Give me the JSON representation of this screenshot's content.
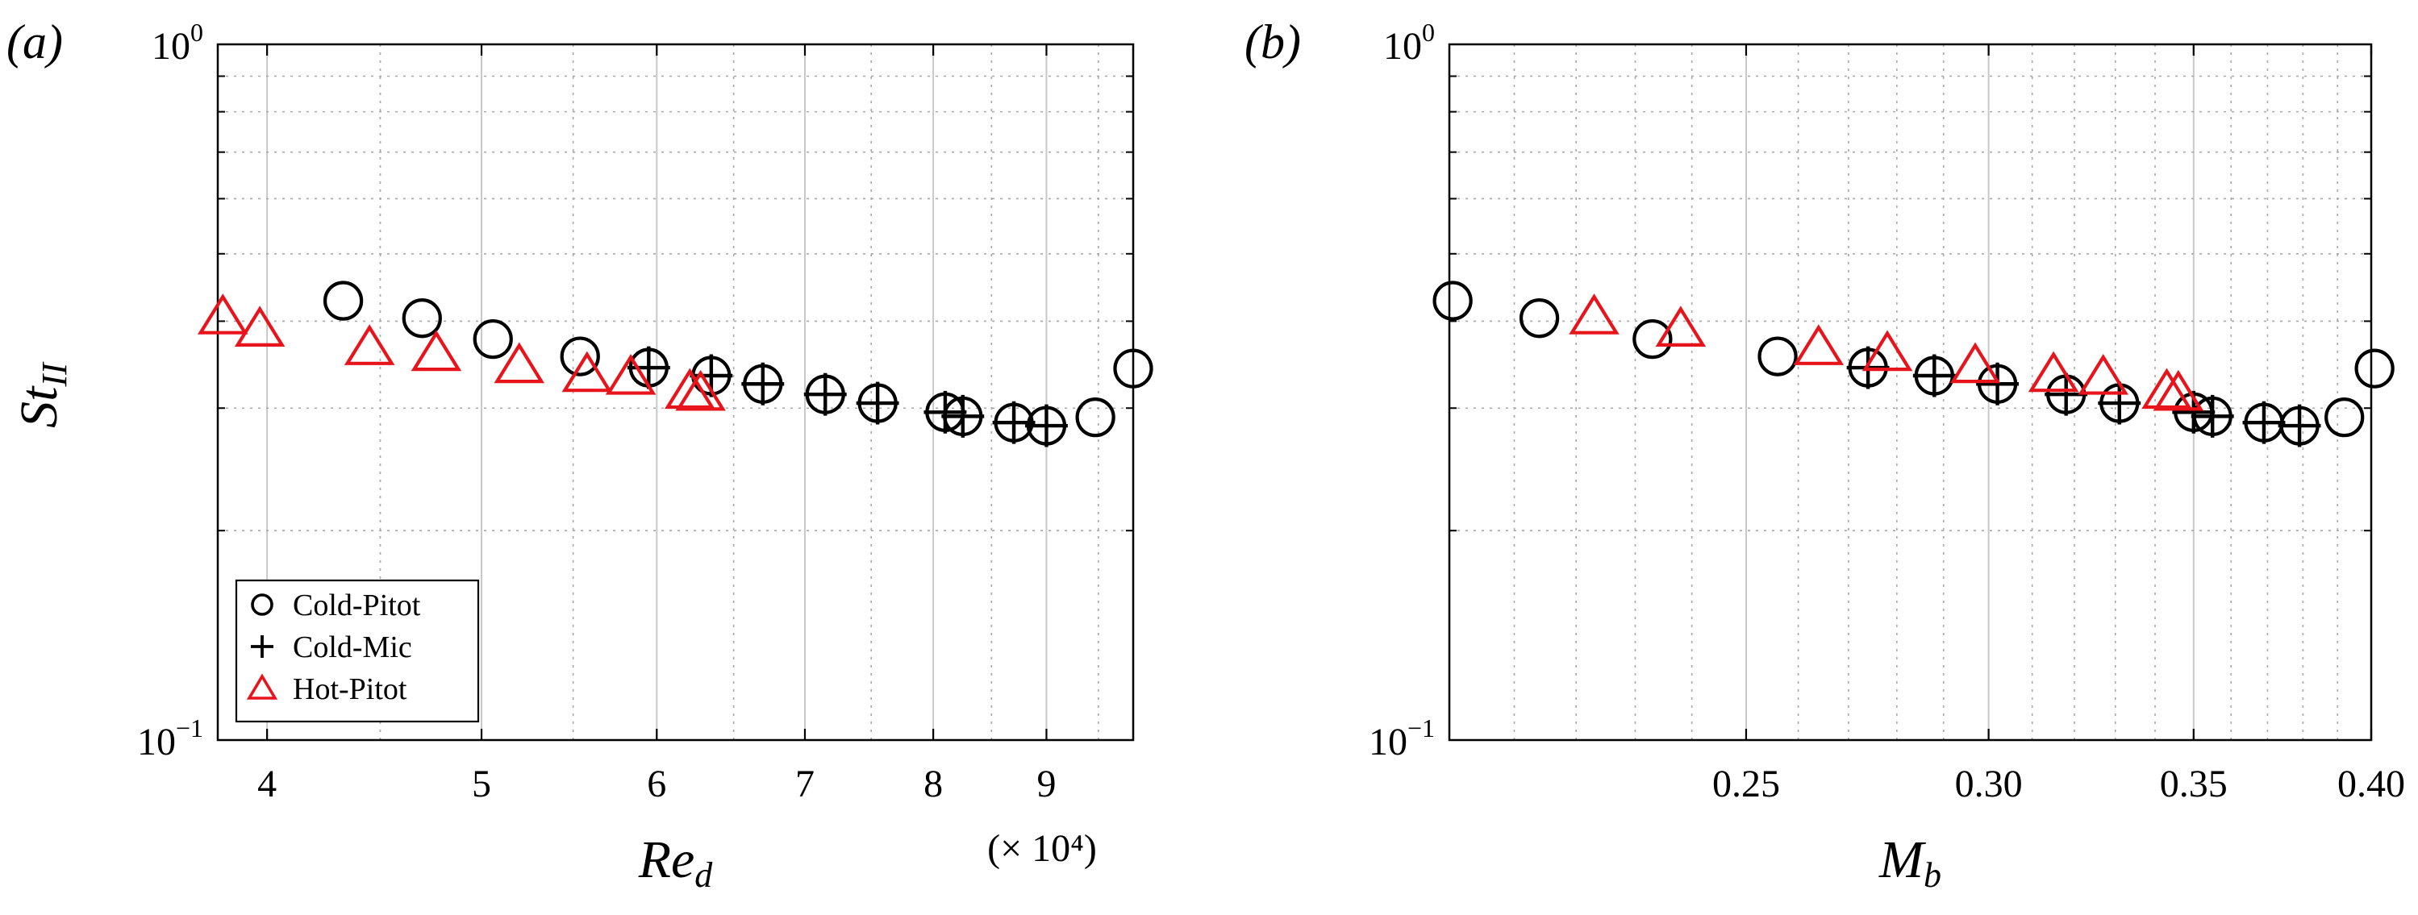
{
  "chart_data": [
    {
      "panel_label": "(a)",
      "type": "scatter",
      "xlabel": "Re",
      "xlabel_sub": "d",
      "x_multiplier_label": "(× 10⁴)",
      "ylabel": "St",
      "ylabel_sub": "II",
      "xscale": "log",
      "yscale": "log",
      "xlim": [
        3.8,
        9.85
      ],
      "ylim": [
        0.1,
        1.0
      ],
      "xticks": [
        4,
        5,
        6,
        7,
        8,
        9
      ],
      "xtick_labels": [
        "4",
        "5",
        "6",
        "7",
        "8",
        "9"
      ],
      "yticks": [
        0.1,
        1.0
      ],
      "ytick_labels": [
        {
          "base": "10",
          "exp": "−1"
        },
        {
          "base": "10",
          "exp": "0"
        }
      ],
      "grid": true,
      "legend": {
        "position": "bottom-left",
        "entries": [
          {
            "label": "Cold-Pitot",
            "marker": "circle",
            "color": "#000000"
          },
          {
            "label": "Cold-Mic",
            "marker": "plus",
            "color": "#000000"
          },
          {
            "label": "Hot-Pitot",
            "marker": "triangle",
            "color": "#e8141b"
          }
        ]
      },
      "series": [
        {
          "name": "Cold-Pitot",
          "marker": "circle",
          "color": "#000000",
          "x": [
            4.33,
            4.7,
            5.06,
            5.54,
            5.95,
            6.35,
            6.7,
            7.15,
            7.55,
            8.1,
            8.25,
            8.7,
            9.0,
            9.47,
            9.85
          ],
          "y": [
            0.428,
            0.404,
            0.377,
            0.356,
            0.343,
            0.334,
            0.325,
            0.314,
            0.305,
            0.296,
            0.292,
            0.286,
            0.283,
            0.291,
            0.342
          ]
        },
        {
          "name": "Cold-Mic",
          "marker": "plus",
          "color": "#000000",
          "x": [
            5.95,
            6.35,
            6.7,
            7.15,
            7.55,
            8.1,
            8.25,
            8.7,
            9.0
          ],
          "y": [
            0.343,
            0.334,
            0.325,
            0.314,
            0.305,
            0.296,
            0.292,
            0.286,
            0.283
          ]
        },
        {
          "name": "Hot-Pitot",
          "marker": "triangle",
          "color": "#e8141b",
          "x": [
            3.82,
            3.97,
            4.45,
            4.77,
            5.2,
            5.58,
            5.84,
            6.21,
            6.28
          ],
          "y": [
            0.403,
            0.387,
            0.364,
            0.357,
            0.343,
            0.333,
            0.33,
            0.315,
            0.313
          ]
        }
      ]
    },
    {
      "panel_label": "(b)",
      "type": "scatter",
      "xlabel": "M",
      "xlabel_sub": "b",
      "ylabel": "",
      "xscale": "log",
      "yscale": "log",
      "xlim": [
        0.2,
        0.4
      ],
      "ylim": [
        0.1,
        1.0
      ],
      "xticks": [
        0.25,
        0.3,
        0.35,
        0.4
      ],
      "xtick_labels": [
        "0.25",
        "0.30",
        "0.35",
        "0.40"
      ],
      "yticks": [
        0.1,
        1.0
      ],
      "ytick_labels": [
        {
          "base": "10",
          "exp": "−1"
        },
        {
          "base": "10",
          "exp": "0"
        }
      ],
      "grid": true,
      "series": [
        {
          "name": "Cold-Pitot",
          "marker": "circle",
          "color": "#000000",
          "x": [
            0.2005,
            0.214,
            0.233,
            0.256,
            0.274,
            0.288,
            0.302,
            0.318,
            0.331,
            0.35,
            0.355,
            0.369,
            0.379,
            0.392,
            0.401
          ],
          "y": [
            0.428,
            0.404,
            0.377,
            0.356,
            0.343,
            0.334,
            0.325,
            0.314,
            0.305,
            0.296,
            0.292,
            0.286,
            0.283,
            0.291,
            0.342
          ]
        },
        {
          "name": "Cold-Mic",
          "marker": "plus",
          "color": "#000000",
          "x": [
            0.274,
            0.288,
            0.302,
            0.318,
            0.331,
            0.35,
            0.355,
            0.369,
            0.379
          ],
          "y": [
            0.343,
            0.334,
            0.325,
            0.314,
            0.305,
            0.296,
            0.292,
            0.286,
            0.283
          ]
        },
        {
          "name": "Hot-Pitot",
          "marker": "triangle",
          "color": "#e8141b",
          "x": [
            0.223,
            0.238,
            0.264,
            0.278,
            0.297,
            0.315,
            0.327,
            0.343,
            0.346
          ],
          "y": [
            0.403,
            0.387,
            0.364,
            0.357,
            0.343,
            0.333,
            0.33,
            0.315,
            0.313
          ]
        }
      ]
    }
  ]
}
